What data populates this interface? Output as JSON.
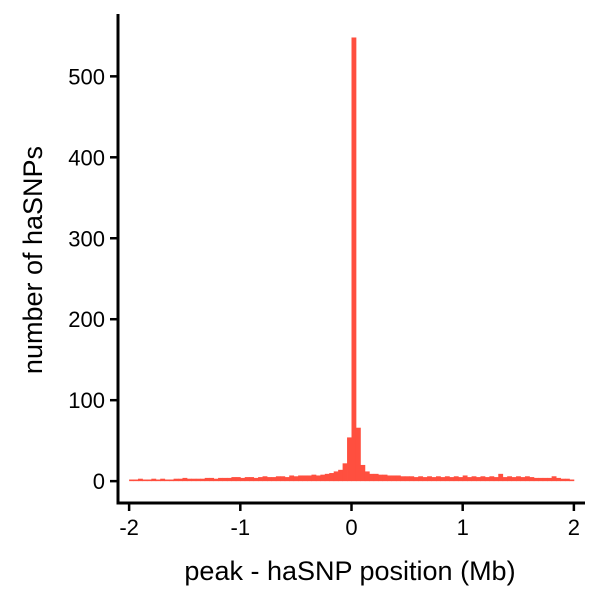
{
  "chart_data": {
    "type": "bar",
    "title": "",
    "xlabel": "peak - haSNP position (Mb)",
    "ylabel": "number of haSNPs",
    "bar_color": "#FF4F3F",
    "grid": false,
    "legend": "none",
    "xlim": [
      -2.1,
      2.1
    ],
    "ylim": [
      -27,
      577
    ],
    "x_ticks": [
      -2,
      -1,
      0,
      1,
      2
    ],
    "x_tick_labels": [
      "-2",
      "-1",
      "0",
      "1",
      "2"
    ],
    "y_ticks": [
      0,
      100,
      200,
      300,
      400,
      500
    ],
    "y_tick_labels": [
      "0",
      "100",
      "200",
      "300",
      "400",
      "500"
    ],
    "bin_width": 0.04,
    "bins_start": -2.0,
    "values": [
      2,
      2,
      3,
      2,
      2,
      3,
      2,
      3,
      2,
      2,
      3,
      3,
      4,
      3,
      3,
      3,
      3,
      4,
      4,
      3,
      4,
      4,
      4,
      5,
      5,
      4,
      5,
      5,
      4,
      5,
      6,
      5,
      5,
      6,
      6,
      5,
      7,
      6,
      7,
      7,
      7,
      8,
      7,
      8,
      9,
      10,
      12,
      14,
      22,
      54,
      548,
      66,
      20,
      12,
      9,
      9,
      8,
      8,
      7,
      7,
      7,
      6,
      6,
      6,
      5,
      6,
      5,
      6,
      5,
      6,
      5,
      6,
      5,
      6,
      5,
      7,
      5,
      6,
      5,
      6,
      5,
      6,
      5,
      9,
      5,
      6,
      5,
      6,
      5,
      6,
      5,
      4,
      4,
      4,
      4,
      6,
      4,
      3,
      3,
      2
    ]
  }
}
